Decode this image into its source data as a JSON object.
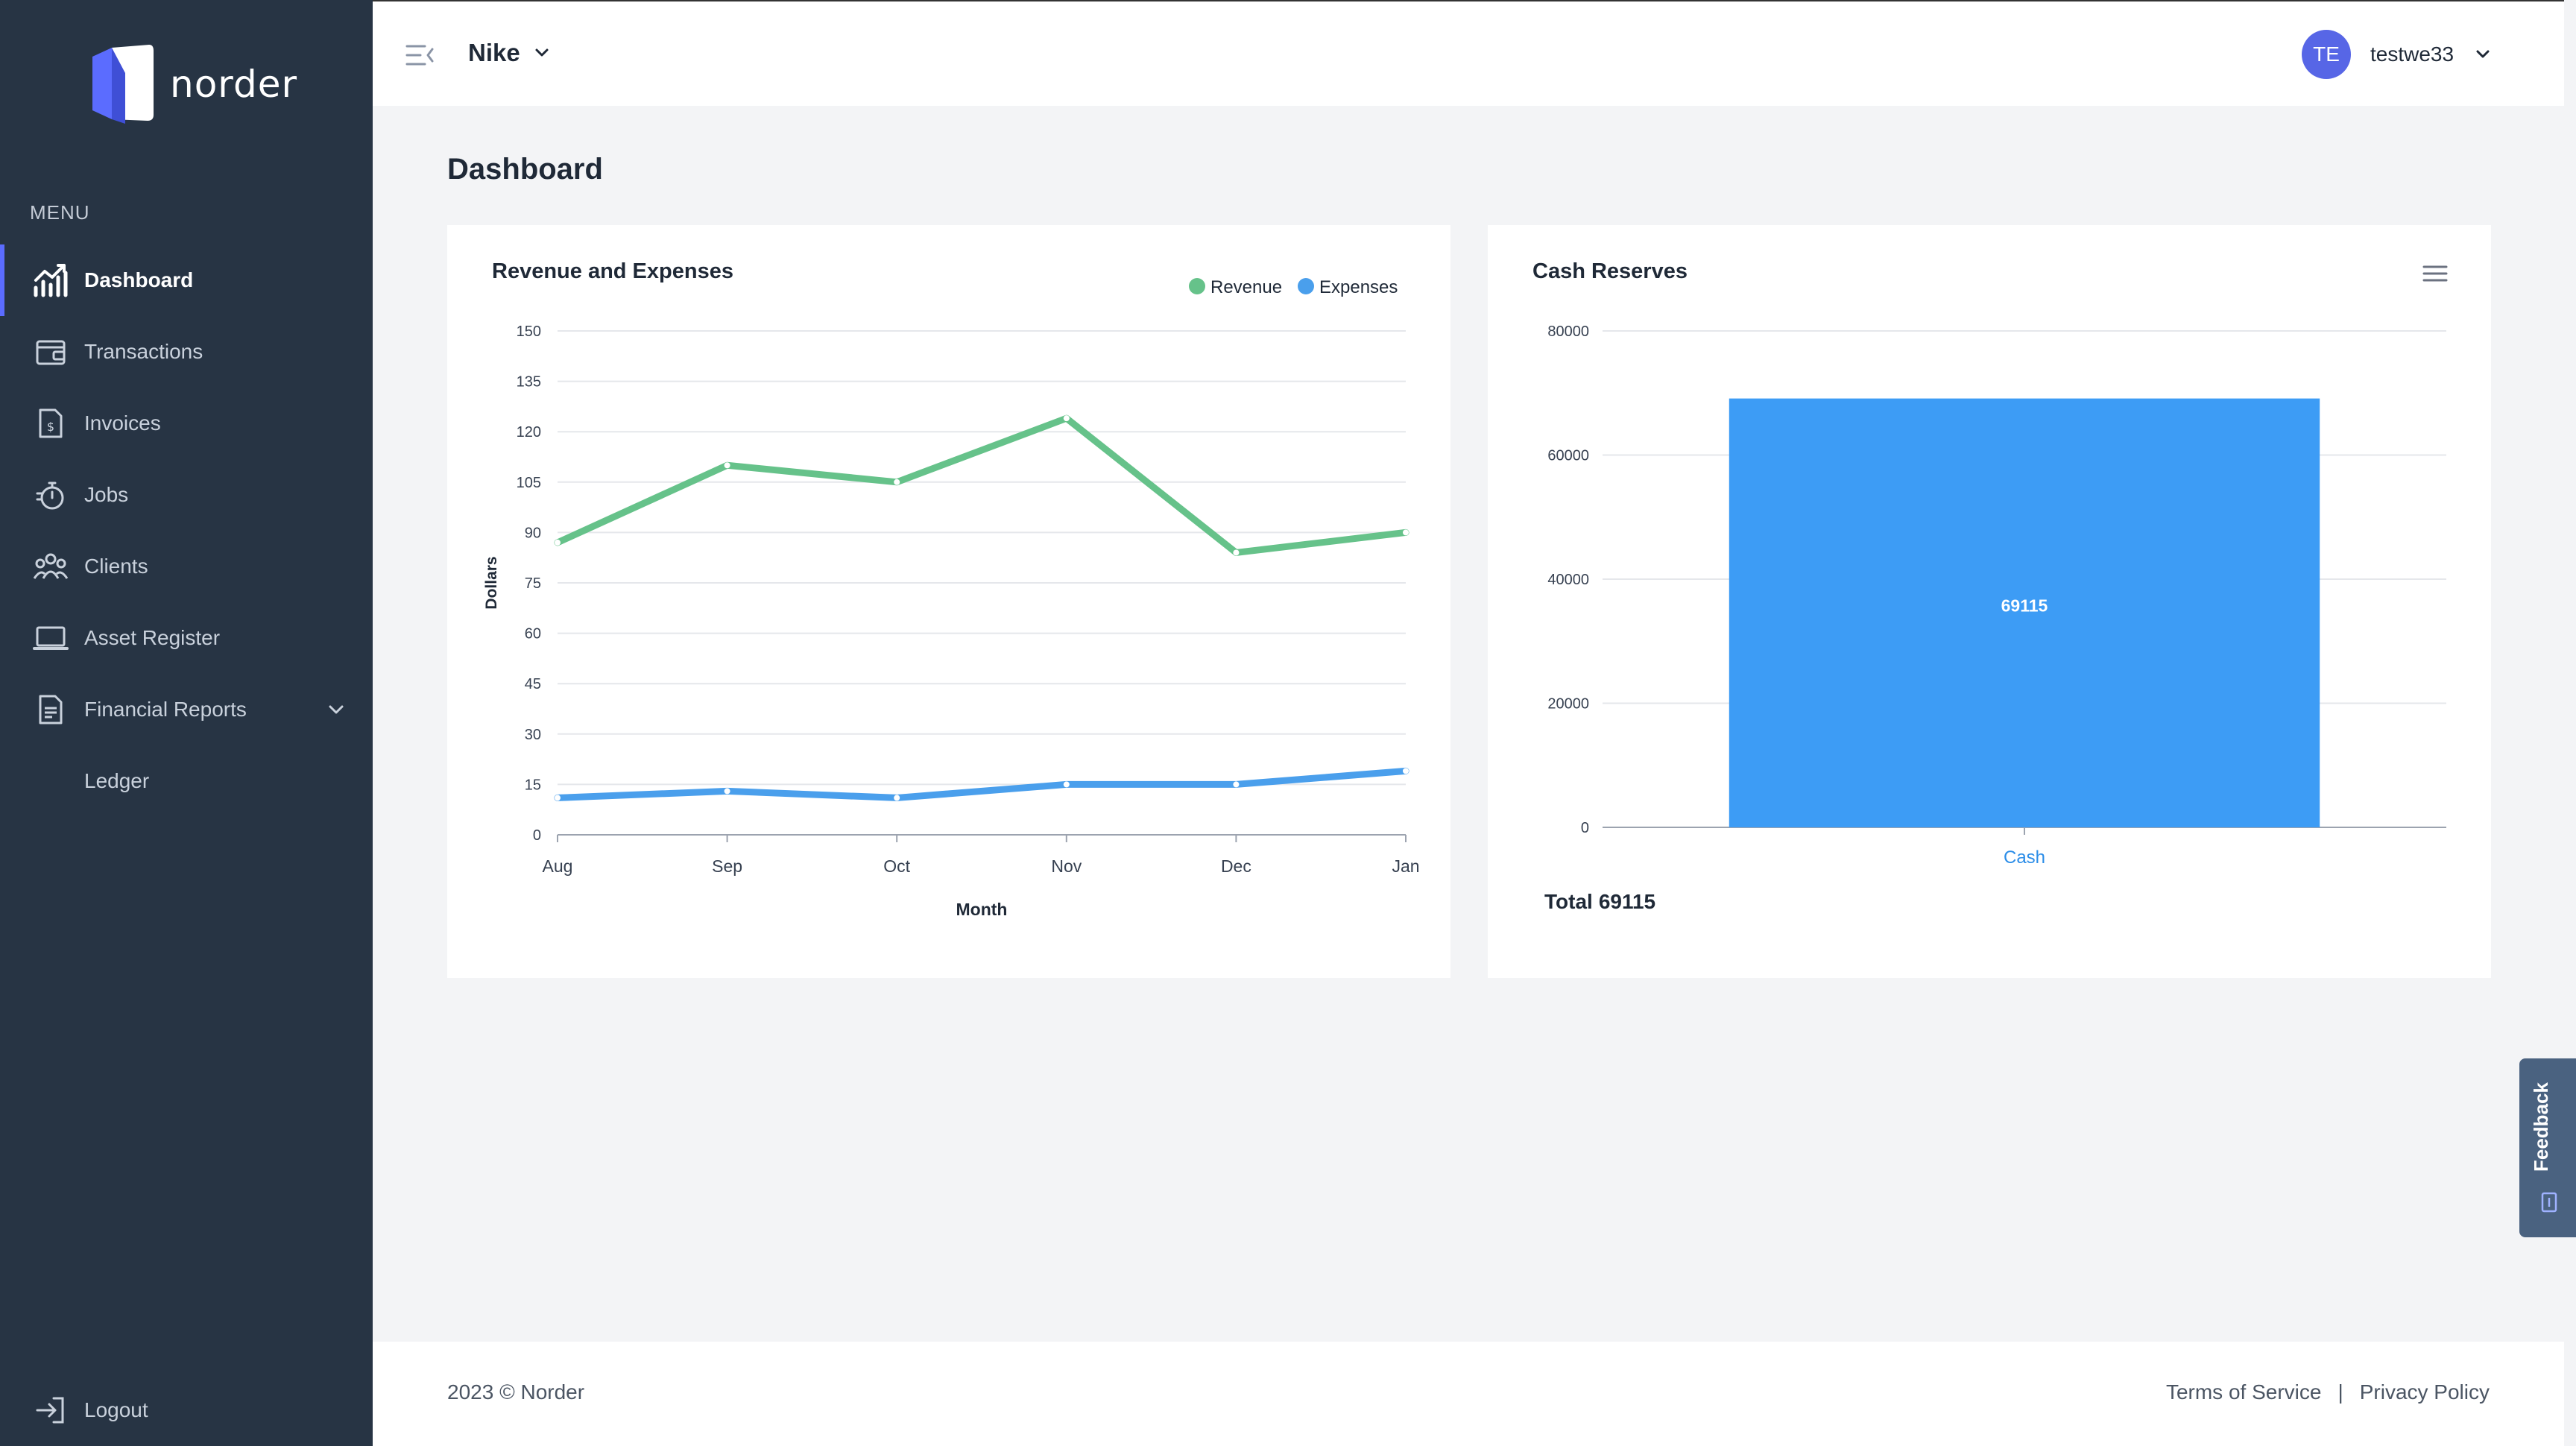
{
  "app": {
    "name": "norder",
    "brand_color": "#5b6cff"
  },
  "sidebar": {
    "menu_title": "MENU",
    "items": [
      {
        "label": "Dashboard",
        "icon": "chart-icon",
        "active": true
      },
      {
        "label": "Transactions",
        "icon": "wallet-icon"
      },
      {
        "label": "Invoices",
        "icon": "invoice-icon"
      },
      {
        "label": "Jobs",
        "icon": "stopwatch-icon"
      },
      {
        "label": "Clients",
        "icon": "users-icon"
      },
      {
        "label": "Asset Register",
        "icon": "laptop-icon"
      },
      {
        "label": "Financial Reports",
        "icon": "document-icon",
        "expandable": true
      },
      {
        "label": "Ledger"
      }
    ],
    "logout_label": "Logout"
  },
  "header": {
    "company": "Nike",
    "user_initials": "TE",
    "username": "testwe33"
  },
  "page": {
    "title": "Dashboard"
  },
  "charts": {
    "revenue": {
      "title": "Revenue and Expenses"
    },
    "cash": {
      "title": "Cash Reserves",
      "total_label": "Total",
      "total_value": "69115"
    }
  },
  "chart_data": [
    {
      "type": "line",
      "title": "Revenue and Expenses",
      "xlabel": "Month",
      "ylabel": "Dollars",
      "categories": [
        "Aug",
        "Sep",
        "Oct",
        "Nov",
        "Dec",
        "Jan"
      ],
      "ylim": [
        0,
        150
      ],
      "yticks": [
        0,
        15,
        30,
        45,
        60,
        75,
        90,
        105,
        120,
        135,
        150
      ],
      "legend_position": "top-right",
      "grid": true,
      "series": [
        {
          "name": "Revenue",
          "color": "#66c28a",
          "values": [
            87,
            110,
            105,
            124,
            84,
            90
          ]
        },
        {
          "name": "Expenses",
          "color": "#4a9fec",
          "values": [
            11,
            13,
            11,
            15,
            15,
            19
          ]
        }
      ]
    },
    {
      "type": "bar",
      "title": "Cash Reserves",
      "categories": [
        "Cash"
      ],
      "values": [
        69115
      ],
      "data_labels": [
        "69115"
      ],
      "ylim": [
        0,
        80000
      ],
      "yticks": [
        0,
        20000,
        40000,
        60000,
        80000
      ],
      "grid": true,
      "color": "#3d9cf5"
    }
  ],
  "footer": {
    "copyright": "2023 © Norder",
    "terms": "Terms of Service",
    "separator": "|",
    "privacy": "Privacy Policy"
  },
  "feedback": {
    "label": "Feedback"
  }
}
